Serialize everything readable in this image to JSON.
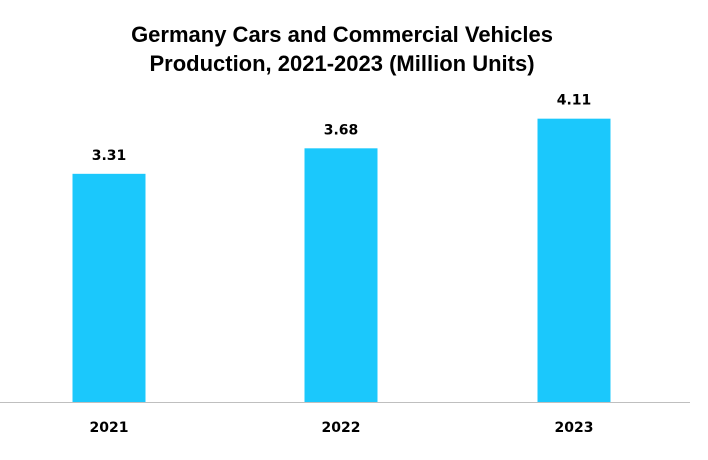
{
  "chart_data": {
    "type": "bar",
    "title_line1": "Germany Cars and Commercial Vehicles",
    "title_line2": "Production, 2021-2023 (Million Units)",
    "categories": [
      "2021",
      "2022",
      "2023"
    ],
    "values": [
      3.31,
      3.68,
      4.11
    ],
    "data_labels": [
      "3.31",
      "3.68",
      "4.11"
    ],
    "xlabel": "",
    "ylabel": "",
    "ylim": [
      0,
      4.7
    ],
    "grid": false,
    "legend": "none",
    "bar_color": "#1BC8FC",
    "axis_color": "#BFBFBF"
  }
}
